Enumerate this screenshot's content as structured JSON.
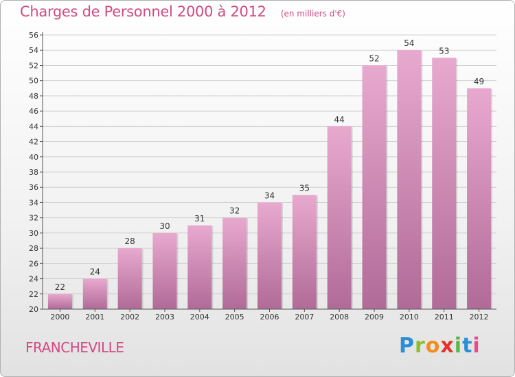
{
  "header": {
    "title": "Charges de Personnel 2000 à 2012",
    "unit": "(en milliers d'€)"
  },
  "footer": {
    "commune": "FRANCHEVILLE",
    "brand": "Proxiti"
  },
  "colors": {
    "bar_light": "#e8a9cf",
    "bar_dark": "#b06b97",
    "title": "#d24a82",
    "grid": "#d0d0d0"
  },
  "chart_data": {
    "type": "bar",
    "title": "Charges de Personnel 2000 à 2012",
    "subtitle": "(en milliers d'€)",
    "xlabel": "",
    "ylabel": "",
    "categories": [
      "2000",
      "2001",
      "2002",
      "2003",
      "2004",
      "2005",
      "2006",
      "2007",
      "2008",
      "2009",
      "2010",
      "2011",
      "2012"
    ],
    "values": [
      22,
      24,
      28,
      30,
      31,
      32,
      34,
      35,
      44,
      52,
      54,
      53,
      49
    ],
    "ylim": [
      20,
      56
    ],
    "yticks": [
      20,
      22,
      24,
      26,
      28,
      30,
      32,
      34,
      36,
      38,
      40,
      42,
      44,
      46,
      48,
      50,
      52,
      54,
      56
    ],
    "grid": true,
    "legend": "none"
  }
}
